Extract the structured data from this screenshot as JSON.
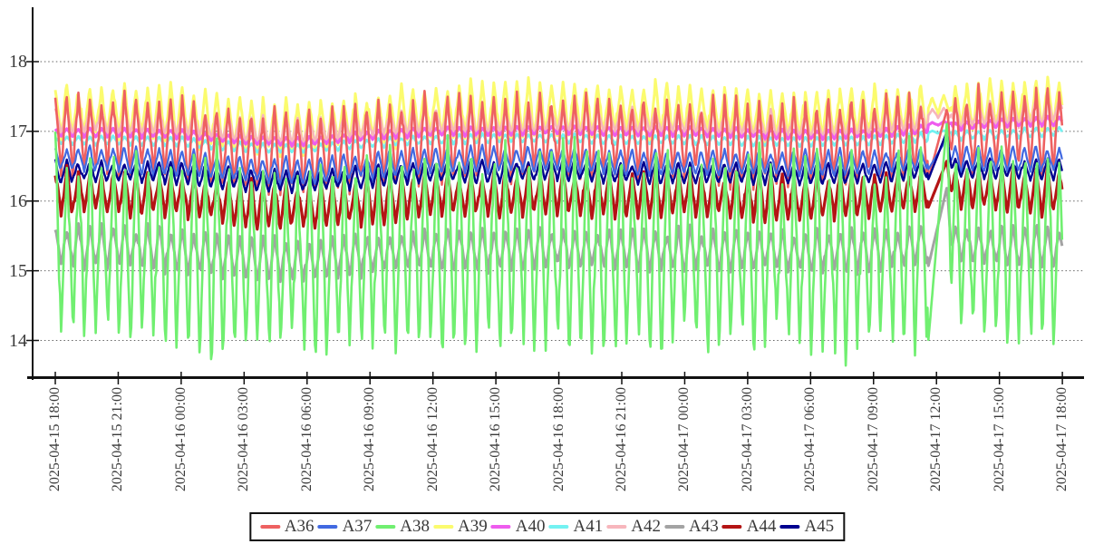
{
  "chart_data": {
    "type": "line",
    "title": "",
    "xlabel": "",
    "ylabel": "",
    "grid": true,
    "legend_position": "bottom",
    "ylim": [
      13.4,
      18.8
    ],
    "yticks": [
      14,
      15,
      16,
      17,
      18
    ],
    "x_tick_labels": [
      "2025-04-15 18:00",
      "2025-04-15 21:00",
      "2025-04-16 00:00",
      "2025-04-16 03:00",
      "2025-04-16 06:00",
      "2025-04-16 09:00",
      "2025-04-16 12:00",
      "2025-04-16 15:00",
      "2025-04-16 18:00",
      "2025-04-16 21:00",
      "2025-04-17 00:00",
      "2025-04-17 03:00",
      "2025-04-17 06:00",
      "2025-04-17 09:00",
      "2025-04-17 12:00",
      "2025-04-17 15:00",
      "2025-04-17 18:00"
    ],
    "x_tick_interval_hours": 3,
    "oscillation_period_minutes": 33,
    "events": [
      {
        "time": "2025-04-17 ~11:40-12:50",
        "description": "oscillation pauses; A38, A36, A45, A44, A43, A37 ramp up steadily (A38 from ~14.0 to ~17.15) then normal cycling resumes"
      },
      {
        "time": "2025-04-16 03:00-07:00",
        "description": "all series drift ~0.15-0.25 lower, then recover"
      }
    ],
    "draw_order": [
      "A39",
      "A42",
      "A41",
      "A40",
      "A36",
      "A37",
      "A45",
      "A43",
      "A44",
      "A38"
    ],
    "anomaly_window": {
      "start_min": 2496,
      "peak_min": 2550,
      "end_min": 2564
    },
    "series": [
      {
        "name": "A36",
        "color": "#ee6161",
        "approx_range": [
          16.3,
          17.55
        ],
        "amp": 0.55,
        "phase": 0.5,
        "width": 2.6,
        "mid_at_ticks": [
          16.95,
          16.95,
          16.9,
          16.72,
          16.7,
          16.82,
          16.9,
          16.92,
          16.95,
          16.9,
          16.9,
          16.85,
          16.85,
          16.9,
          16.95,
          17.0,
          17.02
        ],
        "anomaly_ramp": [
          16.3,
          17.32
        ]
      },
      {
        "name": "A37",
        "color": "#4169e1",
        "approx_range": [
          16.4,
          16.8
        ],
        "amp": 0.18,
        "phase": 0.52,
        "width": 2.2,
        "mid_at_ticks": [
          16.6,
          16.6,
          16.55,
          16.45,
          16.42,
          16.5,
          16.58,
          16.6,
          16.6,
          16.55,
          16.55,
          16.55,
          16.55,
          16.55,
          16.62,
          16.6,
          16.6
        ],
        "anomaly_ramp": [
          16.45,
          16.9
        ]
      },
      {
        "name": "A38",
        "color": "#70ef70",
        "approx_range": [
          13.75,
          16.85
        ],
        "amp": 1.42,
        "phase": 0.47,
        "width": 2.6,
        "mid_at_ticks": [
          15.35,
          15.35,
          15.3,
          15.2,
          15.18,
          15.25,
          15.3,
          15.32,
          15.32,
          15.3,
          15.3,
          15.32,
          15.3,
          15.3,
          15.42,
          15.38,
          15.38
        ],
        "anomaly_ramp": [
          13.95,
          17.15
        ]
      },
      {
        "name": "A39",
        "color": "#fbfb6e",
        "approx_range": [
          16.9,
          17.75
        ],
        "amp": 0.36,
        "phase": 0.5,
        "width": 3.0,
        "mid_at_ticks": [
          17.28,
          17.28,
          17.25,
          17.08,
          17.05,
          17.18,
          17.28,
          17.3,
          17.32,
          17.3,
          17.3,
          17.25,
          17.22,
          17.28,
          17.32,
          17.38,
          17.4
        ],
        "anomaly_ramp": null
      },
      {
        "name": "A40",
        "color": "#ee5cee",
        "approx_range": [
          16.8,
          17.2
        ],
        "amp": 0.06,
        "phase": 0.5,
        "width": 3.2,
        "mid_at_ticks": [
          16.98,
          16.98,
          16.96,
          16.87,
          16.85,
          16.94,
          17.0,
          17.0,
          17.02,
          17.0,
          17.0,
          16.97,
          16.95,
          16.97,
          17.05,
          17.12,
          17.15
        ],
        "anomaly_ramp": null
      },
      {
        "name": "A41",
        "color": "#73f2f2",
        "approx_range": [
          16.7,
          17.05
        ],
        "amp": 0.06,
        "phase": 0.5,
        "width": 2.8,
        "mid_at_ticks": [
          16.87,
          16.87,
          16.85,
          16.77,
          16.75,
          16.83,
          16.88,
          16.9,
          16.9,
          16.88,
          16.88,
          16.86,
          16.85,
          16.87,
          16.93,
          16.96,
          17.0
        ],
        "anomaly_ramp": null
      },
      {
        "name": "A42",
        "color": "#f7b6bc",
        "approx_range": [
          16.9,
          17.4
        ],
        "amp": 0.18,
        "phase": 0.5,
        "width": 2.6,
        "mid_at_ticks": [
          17.15,
          17.15,
          17.12,
          17.02,
          17.0,
          17.1,
          17.15,
          17.15,
          17.17,
          17.15,
          17.15,
          17.1,
          17.08,
          17.12,
          17.2,
          17.25,
          17.3
        ],
        "anomaly_ramp": null
      },
      {
        "name": "A43",
        "color": "#a3a3a3",
        "approx_range": [
          15.0,
          15.7
        ],
        "amp": 0.3,
        "phase": 0.48,
        "width": 3.0,
        "mid_at_ticks": [
          15.35,
          15.35,
          15.3,
          15.18,
          15.15,
          15.25,
          15.3,
          15.3,
          15.33,
          15.3,
          15.3,
          15.3,
          15.28,
          15.3,
          15.4,
          15.35,
          15.35
        ],
        "anomaly_ramp": [
          15.05,
          16.2
        ]
      },
      {
        "name": "A44",
        "color": "#b41414",
        "approx_range": [
          15.7,
          16.45
        ],
        "amp": 0.3,
        "phase": 0.5,
        "width": 3.2,
        "mid_at_ticks": [
          16.12,
          16.12,
          16.08,
          15.95,
          15.92,
          16.0,
          16.08,
          16.1,
          16.12,
          16.1,
          16.1,
          16.05,
          16.05,
          16.08,
          16.18,
          16.15,
          16.15
        ],
        "anomaly_ramp": [
          15.9,
          16.58
        ]
      },
      {
        "name": "A45",
        "color": "#00008f",
        "approx_range": [
          16.25,
          16.6
        ],
        "amp": 0.15,
        "phase": 0.52,
        "width": 2.4,
        "mid_at_ticks": [
          16.42,
          16.42,
          16.4,
          16.3,
          16.28,
          16.35,
          16.42,
          16.42,
          16.45,
          16.4,
          16.4,
          16.4,
          16.38,
          16.4,
          16.48,
          16.45,
          16.45
        ],
        "anomaly_ramp": [
          16.3,
          17.0
        ]
      }
    ],
    "legend_entries": [
      "A36",
      "A37",
      "A38",
      "A39",
      "A40",
      "A41",
      "A42",
      "A43",
      "A44",
      "A45"
    ],
    "colors": {
      "axis": "#111111",
      "grid": "#666666",
      "tick_text": "#3a3a3a"
    }
  }
}
